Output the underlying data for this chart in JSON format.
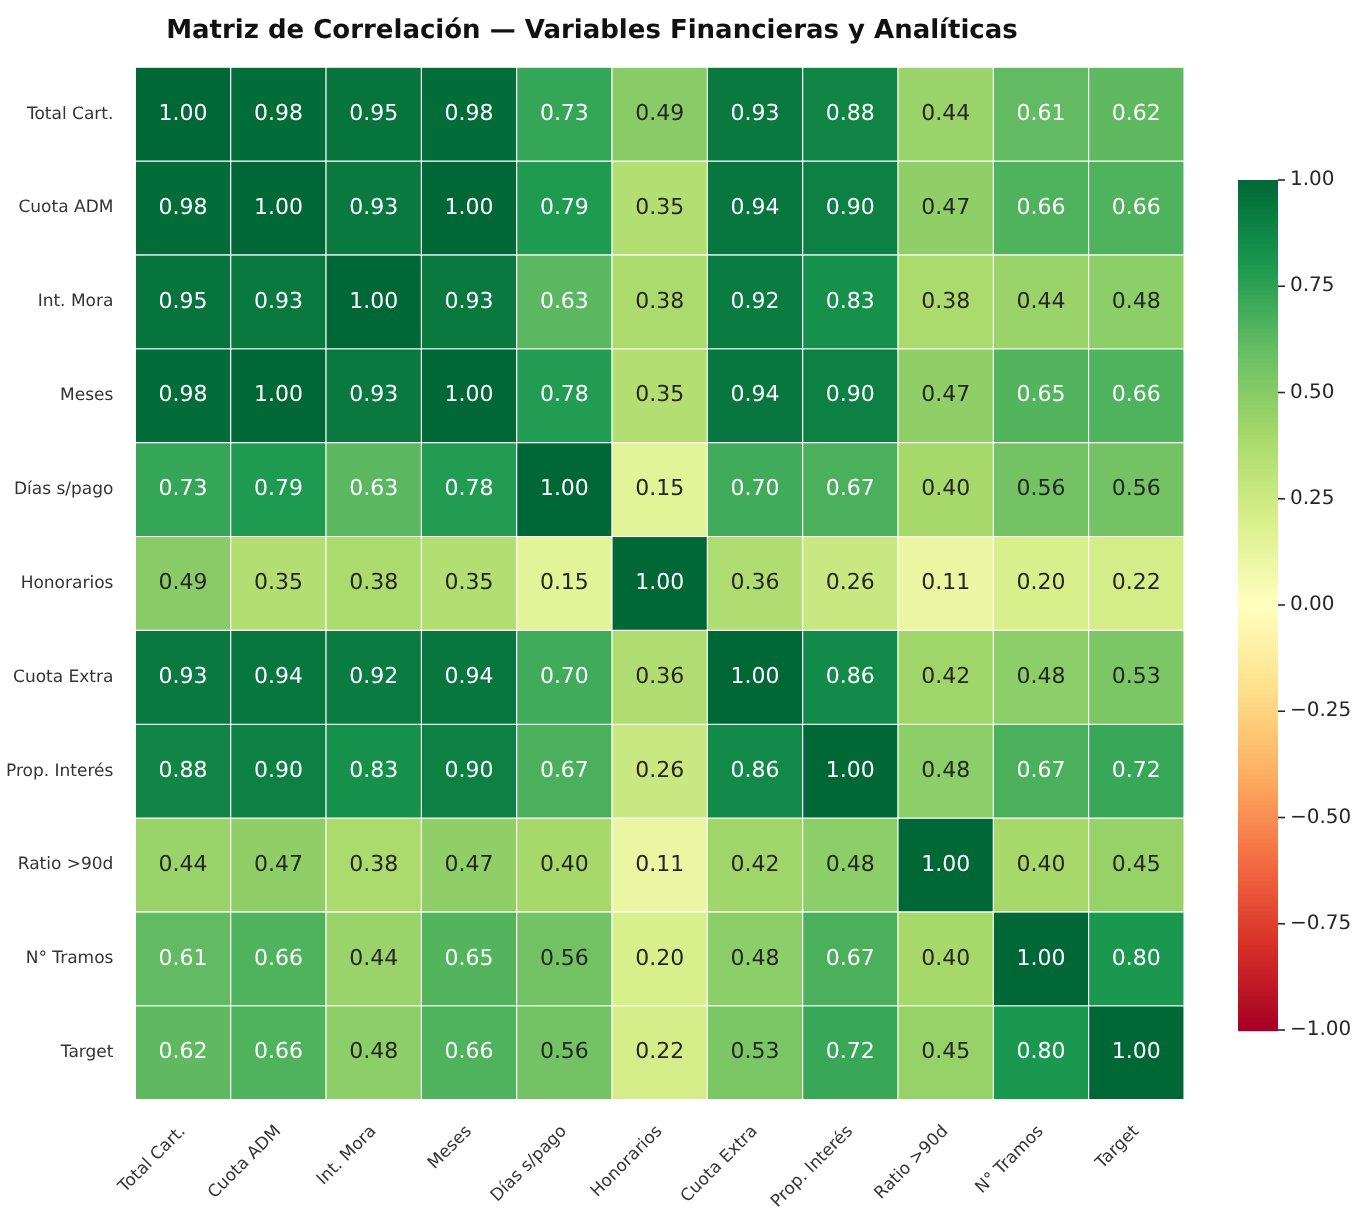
{
  "chart_data": {
    "type": "heatmap",
    "title": "Matriz de Correlación — Variables Financieras y Analíticas",
    "categories": [
      "Total Cart.",
      "Cuota ADM",
      "Int. Mora",
      "Meses",
      "Días s/pago",
      "Honorarios",
      "Cuota Extra",
      "Prop. Interés",
      "Ratio >90d",
      "N° Tramos",
      "Target"
    ],
    "y_categories": [
      "Total Cart.",
      "Cuota ADM",
      "Int. Mora",
      "Meses",
      "Días s/pago",
      "Honorarios",
      "Cuota Extra",
      "Prop. Interés",
      "Ratio >90d",
      "N° Tramos",
      "Target"
    ],
    "cells": [
      [
        1.0,
        0.98,
        0.95,
        0.98,
        0.73,
        0.49,
        0.93,
        0.88,
        0.44,
        0.61,
        0.62
      ],
      [
        0.98,
        1.0,
        0.93,
        1.0,
        0.79,
        0.35,
        0.94,
        0.9,
        0.47,
        0.66,
        0.66
      ],
      [
        0.95,
        0.93,
        1.0,
        0.93,
        0.63,
        0.38,
        0.92,
        0.83,
        0.38,
        0.44,
        0.48
      ],
      [
        0.98,
        1.0,
        0.93,
        1.0,
        0.78,
        0.35,
        0.94,
        0.9,
        0.47,
        0.65,
        0.66
      ],
      [
        0.73,
        0.79,
        0.63,
        0.78,
        1.0,
        0.15,
        0.7,
        0.67,
        0.4,
        0.56,
        0.56
      ],
      [
        0.49,
        0.35,
        0.38,
        0.35,
        0.15,
        1.0,
        0.36,
        0.26,
        0.11,
        0.2,
        0.22
      ],
      [
        0.93,
        0.94,
        0.92,
        0.94,
        0.7,
        0.36,
        1.0,
        0.86,
        0.42,
        0.48,
        0.53
      ],
      [
        0.88,
        0.9,
        0.83,
        0.9,
        0.67,
        0.26,
        0.86,
        1.0,
        0.48,
        0.67,
        0.72
      ],
      [
        0.44,
        0.47,
        0.38,
        0.47,
        0.4,
        0.11,
        0.42,
        0.48,
        1.0,
        0.4,
        0.45
      ],
      [
        0.61,
        0.66,
        0.44,
        0.65,
        0.56,
        0.2,
        0.48,
        0.67,
        0.4,
        1.0,
        0.8
      ],
      [
        0.62,
        0.66,
        0.48,
        0.66,
        0.56,
        0.22,
        0.53,
        0.72,
        0.45,
        0.8,
        1.0
      ]
    ],
    "cell_labels": [
      [
        "1.00",
        "0.98",
        "0.95",
        "0.98",
        "0.73",
        "0.49",
        "0.93",
        "0.88",
        "0.44",
        "0.61",
        "0.62"
      ],
      [
        "0.98",
        "1.00",
        "0.93",
        "1.00",
        "0.79",
        "0.35",
        "0.94",
        "0.90",
        "0.47",
        "0.66",
        "0.66"
      ],
      [
        "0.95",
        "0.93",
        "1.00",
        "0.93",
        "0.63",
        "0.38",
        "0.92",
        "0.83",
        "0.38",
        "0.44",
        "0.48"
      ],
      [
        "0.98",
        "1.00",
        "0.93",
        "1.00",
        "0.78",
        "0.35",
        "0.94",
        "0.90",
        "0.47",
        "0.65",
        "0.66"
      ],
      [
        "0.73",
        "0.79",
        "0.63",
        "0.78",
        "1.00",
        "0.15",
        "0.70",
        "0.67",
        "0.40",
        "0.56",
        "0.56"
      ],
      [
        "0.49",
        "0.35",
        "0.38",
        "0.35",
        "0.15",
        "1.00",
        "0.36",
        "0.26",
        "0.11",
        "0.20",
        "0.22"
      ],
      [
        "0.93",
        "0.94",
        "0.92",
        "0.94",
        "0.70",
        "0.36",
        "1.00",
        "0.86",
        "0.42",
        "0.48",
        "0.53"
      ],
      [
        "0.88",
        "0.90",
        "0.83",
        "0.90",
        "0.67",
        "0.26",
        "0.86",
        "1.00",
        "0.48",
        "0.67",
        "0.72"
      ],
      [
        "0.44",
        "0.47",
        "0.38",
        "0.47",
        "0.40",
        "0.11",
        "0.42",
        "0.48",
        "1.00",
        "0.40",
        "0.45"
      ],
      [
        "0.61",
        "0.66",
        "0.44",
        "0.65",
        "0.56",
        "0.20",
        "0.48",
        "0.67",
        "0.40",
        "1.00",
        "0.80"
      ],
      [
        "0.62",
        "0.66",
        "0.48",
        "0.66",
        "0.56",
        "0.22",
        "0.53",
        "0.72",
        "0.45",
        "0.80",
        "1.00"
      ]
    ],
    "clim": [
      -1,
      1
    ],
    "cticks": [
      {
        "value": 1,
        "label": "1.00"
      },
      {
        "value": 0.75,
        "label": "0.75"
      },
      {
        "value": 0.5,
        "label": "0.50"
      },
      {
        "value": 0.25,
        "label": "0.25"
      },
      {
        "value": 0,
        "label": "0.00"
      },
      {
        "value": -0.25,
        "label": "−0.25"
      },
      {
        "value": -0.5,
        "label": "−0.50"
      },
      {
        "value": -0.75,
        "label": "−0.75"
      },
      {
        "value": -1,
        "label": "−1.00"
      }
    ]
  }
}
